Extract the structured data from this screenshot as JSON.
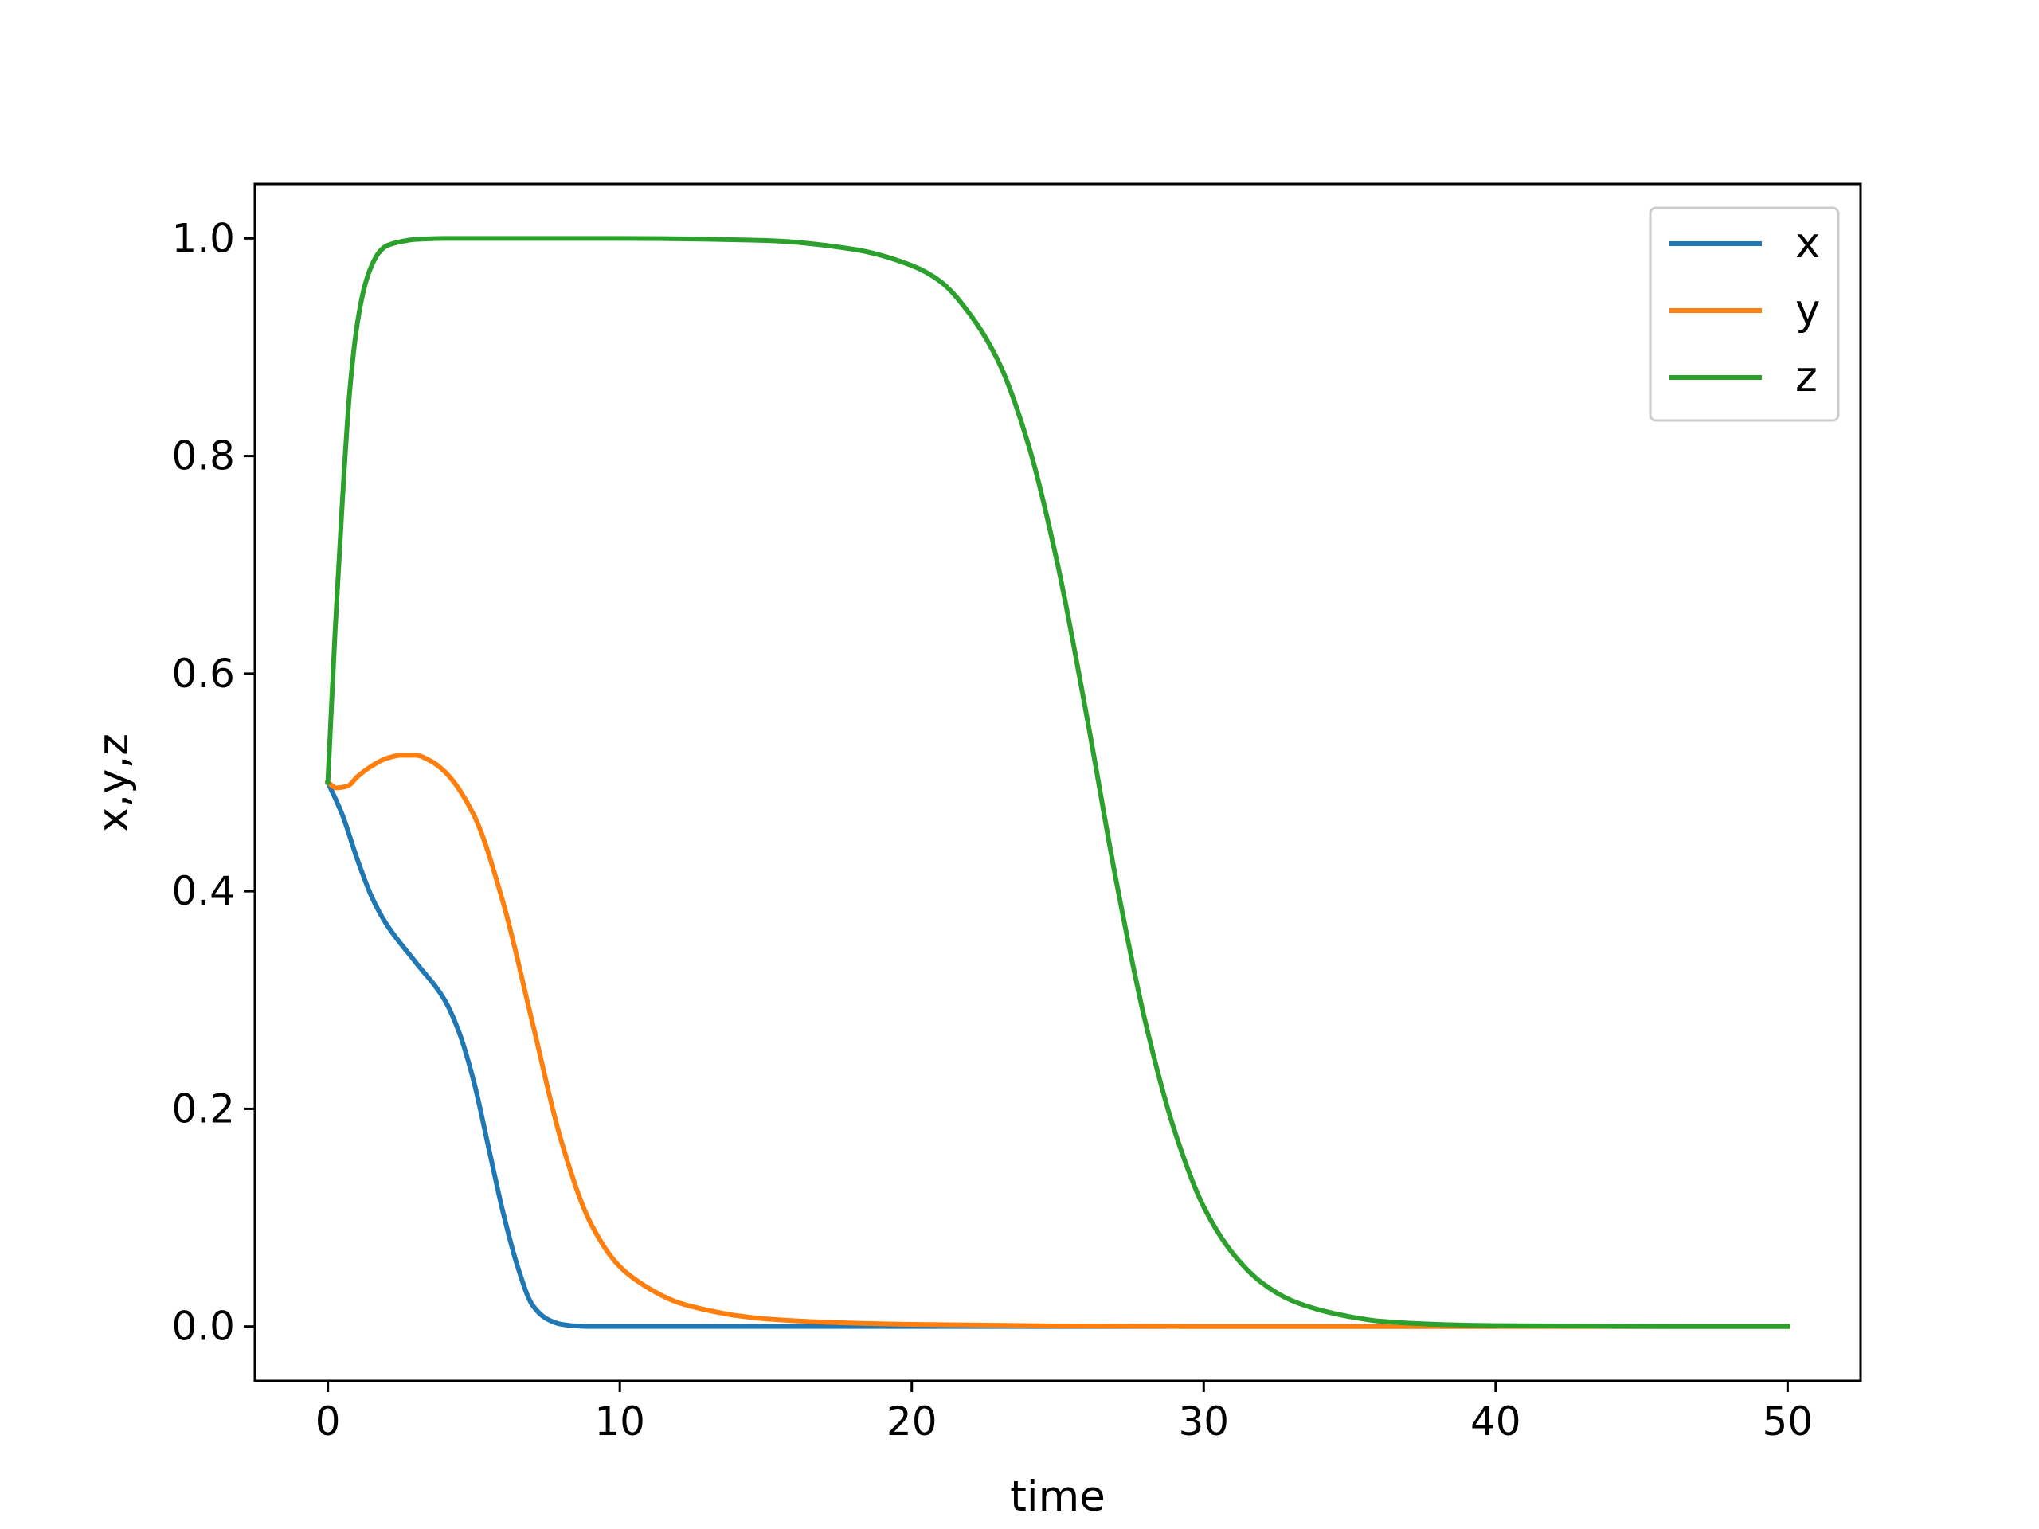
{
  "chart_data": {
    "type": "line",
    "title": "",
    "xlabel": "time",
    "ylabel": "x,y,z",
    "xlim": [
      -2.5,
      52.5
    ],
    "ylim": [
      -0.05,
      1.05
    ],
    "xticks": [
      0,
      10,
      20,
      30,
      40,
      50
    ],
    "xtick_labels": [
      "0",
      "10",
      "20",
      "30",
      "40",
      "50"
    ],
    "yticks": [
      0.0,
      0.2,
      0.4,
      0.6,
      0.8,
      1.0
    ],
    "ytick_labels": [
      "0.0",
      "0.2",
      "0.4",
      "0.6",
      "0.8",
      "1.0"
    ],
    "grid": false,
    "legend_position": "top-right",
    "series": [
      {
        "name": "x",
        "color": "#1f77b4",
        "x": [
          0,
          0.5,
          1,
          1.5,
          2,
          3,
          4,
          4.5,
          5,
          5.5,
          6,
          6.5,
          7,
          7.5,
          8,
          8.5,
          9,
          10,
          15,
          20,
          30,
          40,
          50
        ],
        "y": [
          0.5,
          0.47,
          0.43,
          0.395,
          0.37,
          0.335,
          0.3,
          0.27,
          0.225,
          0.165,
          0.105,
          0.055,
          0.02,
          0.007,
          0.002,
          0.0005,
          0.0,
          0.0,
          0.0,
          0.0,
          0.0,
          0.0,
          0.0
        ]
      },
      {
        "name": "y",
        "color": "#ff7f0e",
        "x": [
          0,
          0.3,
          0.7,
          1,
          1.5,
          2,
          2.5,
          3,
          3.5,
          4,
          5,
          6,
          7,
          8,
          9,
          10,
          11,
          12,
          13,
          14,
          15,
          17,
          20,
          25,
          30,
          40,
          50
        ],
        "y": [
          0.5,
          0.495,
          0.497,
          0.505,
          0.515,
          0.522,
          0.525,
          0.525,
          0.52,
          0.51,
          0.47,
          0.39,
          0.28,
          0.17,
          0.095,
          0.055,
          0.035,
          0.022,
          0.015,
          0.01,
          0.007,
          0.004,
          0.002,
          0.0005,
          0.0,
          0.0,
          0.0
        ]
      },
      {
        "name": "z",
        "color": "#2ca02c",
        "x": [
          0,
          0.25,
          0.5,
          0.75,
          1,
          1.25,
          1.5,
          1.75,
          2,
          2.5,
          3,
          4,
          6,
          10,
          15,
          18,
          20,
          21,
          22,
          23,
          24,
          25,
          26,
          27,
          28,
          29,
          30,
          31,
          32,
          33,
          34,
          35,
          36,
          38,
          40,
          45,
          50
        ],
        "y": [
          0.5,
          0.64,
          0.76,
          0.86,
          0.92,
          0.955,
          0.975,
          0.987,
          0.993,
          0.997,
          0.999,
          1.0,
          1.0,
          1.0,
          0.998,
          0.99,
          0.975,
          0.96,
          0.93,
          0.885,
          0.81,
          0.7,
          0.56,
          0.41,
          0.28,
          0.18,
          0.11,
          0.067,
          0.04,
          0.024,
          0.015,
          0.009,
          0.005,
          0.002,
          0.0008,
          0.0001,
          0.0
        ]
      }
    ]
  }
}
